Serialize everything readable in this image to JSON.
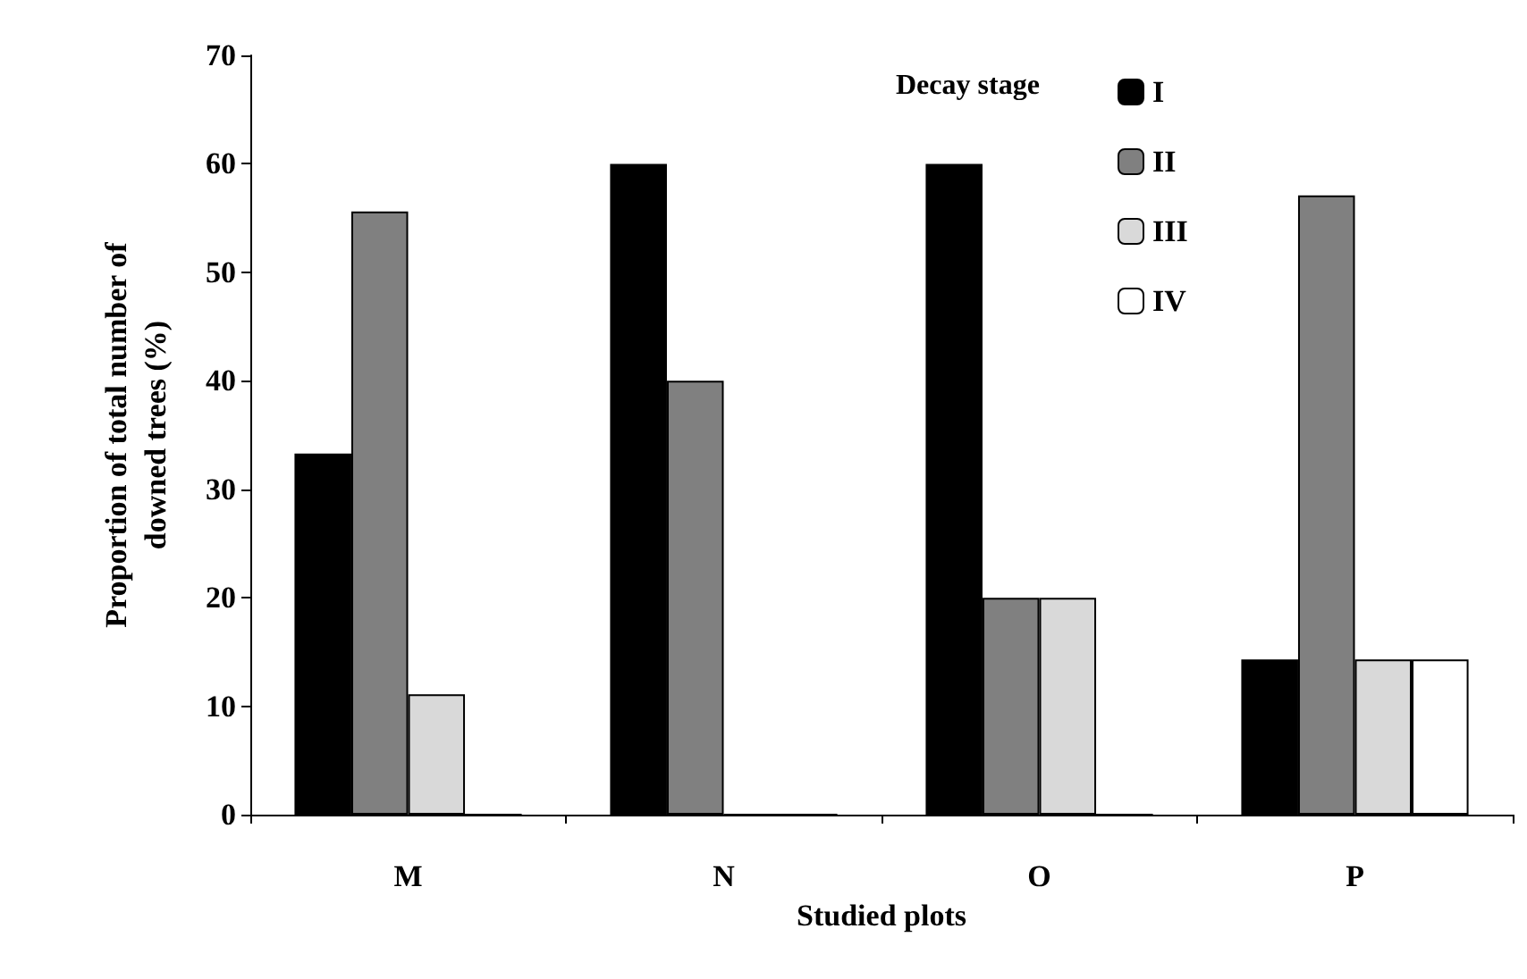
{
  "chart_data": {
    "type": "bar",
    "xlabel": "Studied plots",
    "ylabel": "Proportion of total number of\ndowned trees (%)",
    "legend_title": "Decay stage",
    "categories": [
      "M",
      "N",
      "O",
      "P"
    ],
    "series": [
      {
        "name": "I",
        "color": "#000000",
        "values": [
          33.3,
          60,
          60,
          14.3
        ]
      },
      {
        "name": "II",
        "color": "#808080",
        "values": [
          55.6,
          40,
          20,
          57.1
        ]
      },
      {
        "name": "III",
        "color": "#d9d9d9",
        "values": [
          11.1,
          0,
          20,
          14.3
        ]
      },
      {
        "name": "IV",
        "color": "#ffffff",
        "values": [
          0,
          0,
          0,
          14.3
        ]
      }
    ],
    "ylim": [
      0,
      70
    ],
    "yticks": [
      0,
      10,
      20,
      30,
      40,
      50,
      60,
      70
    ],
    "grid": false,
    "legend": "top right"
  }
}
